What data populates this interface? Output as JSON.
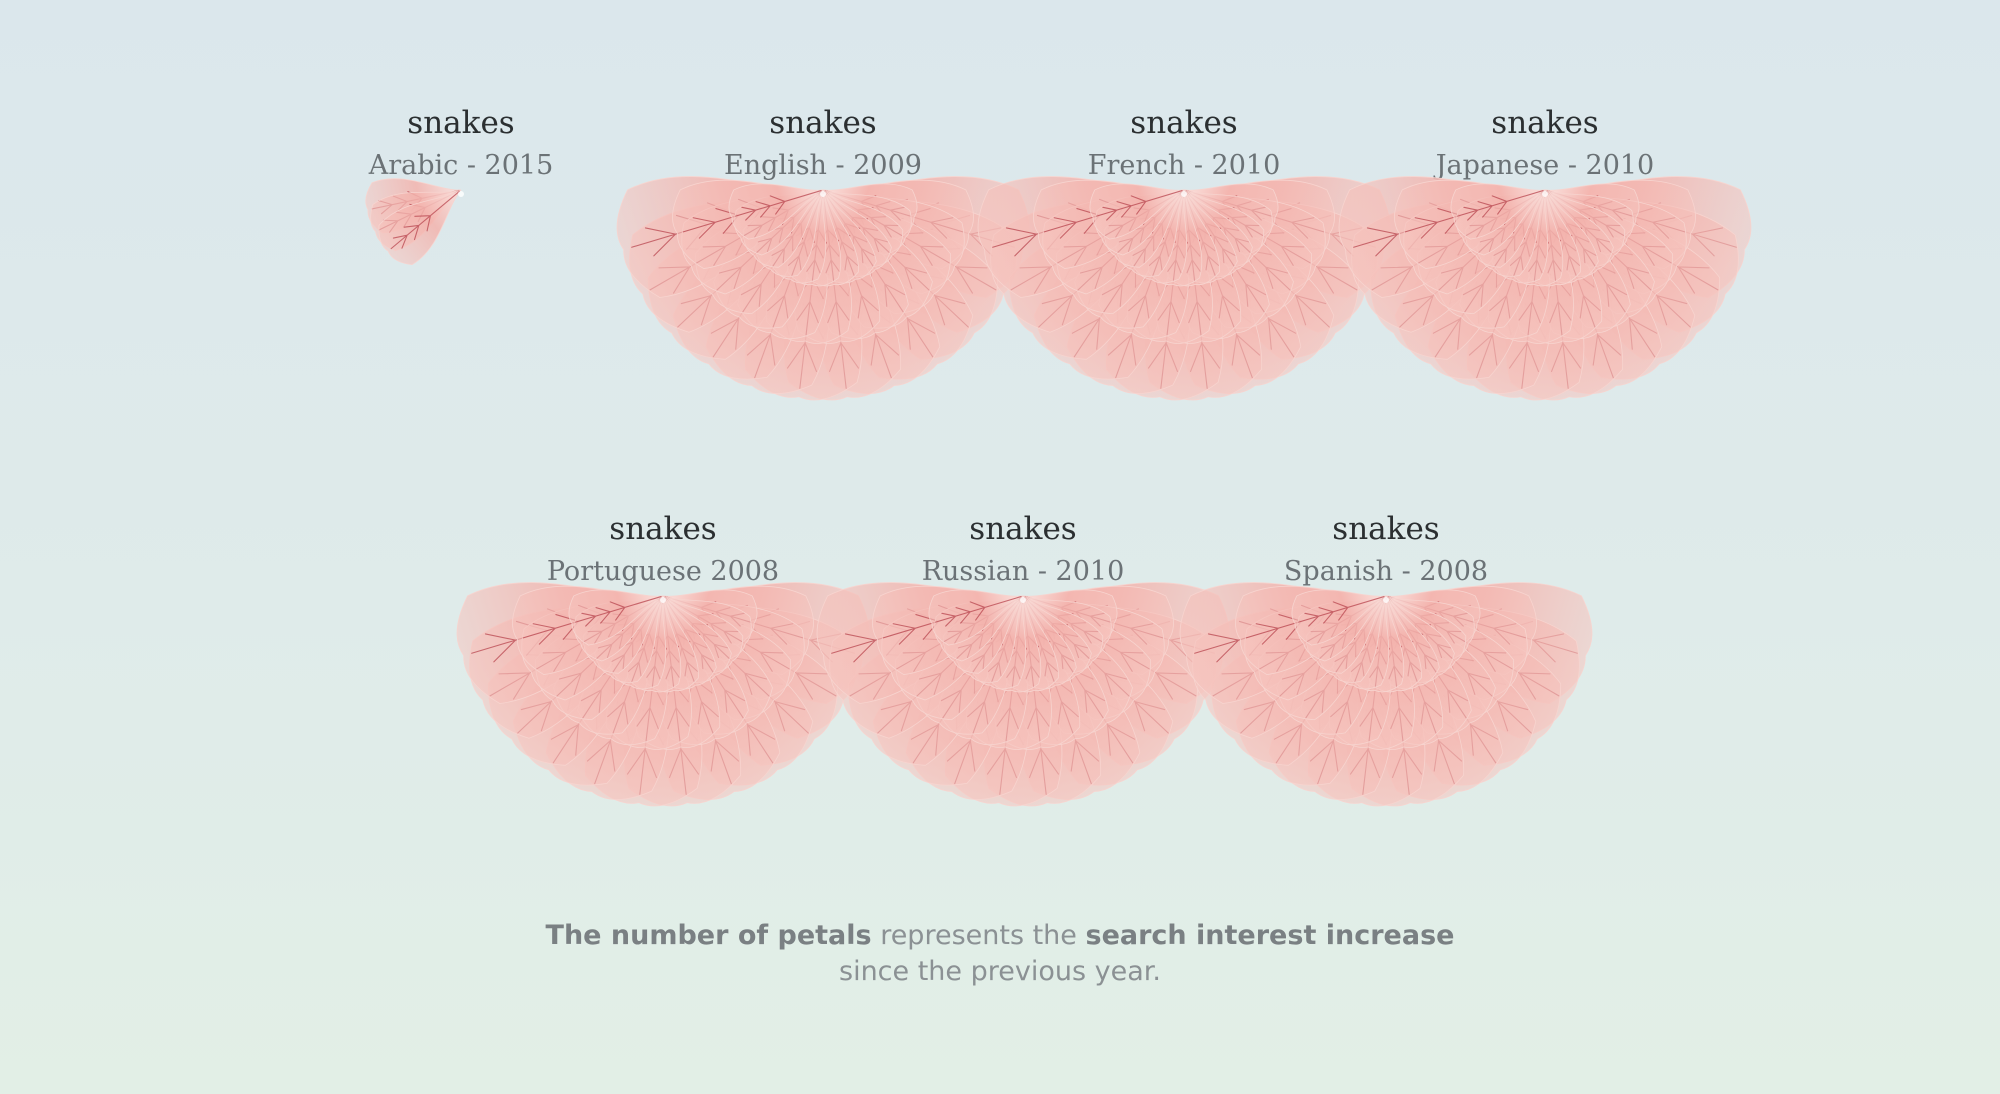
{
  "chart_data": {
    "type": "petal-fan",
    "legend_text": {
      "bold_1": "The number of petals",
      "plain_1": " represents the ",
      "bold_2": "search interest increase",
      "line_2": "since the previous year."
    },
    "colors": {
      "petal_fill": "#f3b3ad",
      "petal_fill_light": "#fbe3df",
      "vein": "#b8454f",
      "background_top": "#dbe7ec",
      "background_bottom": "#e2efe6"
    },
    "items": [
      {
        "term": "snakes",
        "subtitle": "Arabic - 2015",
        "petals": 3
      },
      {
        "term": "snakes",
        "subtitle": "English - 2009",
        "petals": 36
      },
      {
        "term": "snakes",
        "subtitle": "French - 2010",
        "petals": 36
      },
      {
        "term": "snakes",
        "subtitle": "Japanese - 2010",
        "petals": 36
      },
      {
        "term": "snakes",
        "subtitle": "Portuguese  2008",
        "petals": 36
      },
      {
        "term": "snakes",
        "subtitle": "Russian - 2010",
        "petals": 36
      },
      {
        "term": "snakes",
        "subtitle": "Spanish - 2008",
        "petals": 36
      }
    ]
  }
}
